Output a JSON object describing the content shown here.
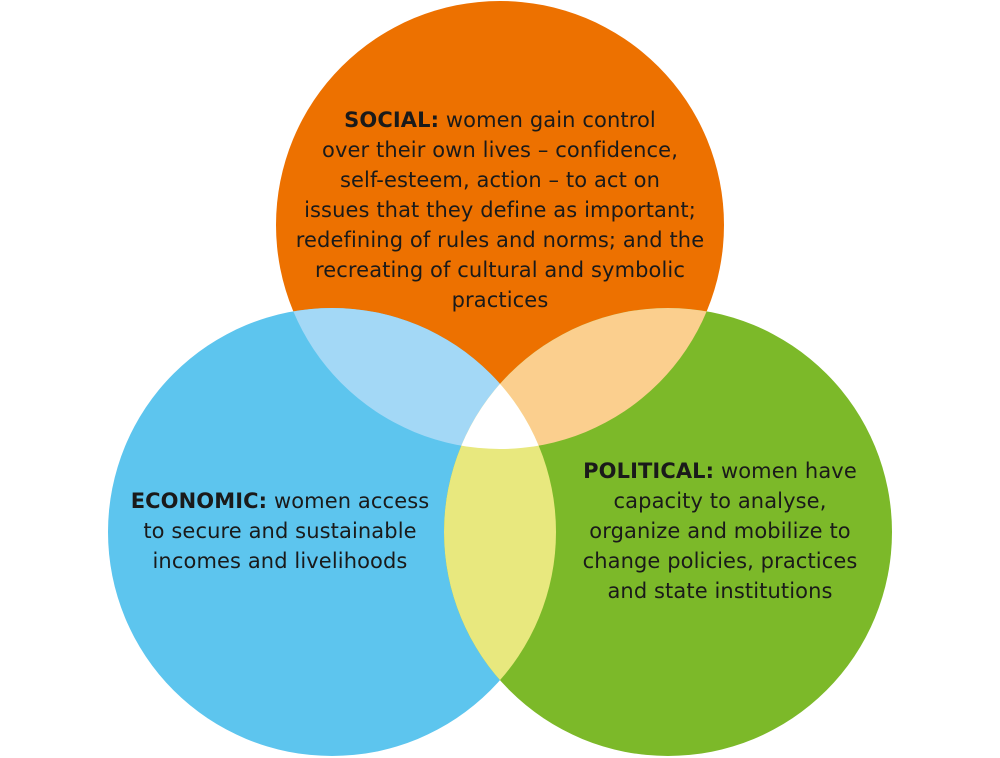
{
  "colors": {
    "social": "#ED7100",
    "economic": "#5DC5EE",
    "political": "#7CB929",
    "social_economic": "#A3D8F6",
    "social_political": "#FBCF8E",
    "economic_political": "#E8E87E",
    "center": "#FFFFFF"
  },
  "social": {
    "heading": "SOCIAL:",
    "lines": [
      " women gain control",
      "over their own lives – confidence,",
      "self-esteem, action – to act on",
      "issues that they define as important;",
      "redefining of rules and norms; and the",
      "recreating of cultural and symbolic",
      "practices"
    ]
  },
  "economic": {
    "heading": "ECONOMIC:",
    "lines": [
      " women access",
      "to secure and sustainable",
      "incomes and livelihoods"
    ]
  },
  "political": {
    "heading": "POLITICAL:",
    "lines": [
      " women have",
      "capacity to analyse,",
      "organize and mobilize to",
      "change policies, practices",
      "and state institutions"
    ]
  }
}
